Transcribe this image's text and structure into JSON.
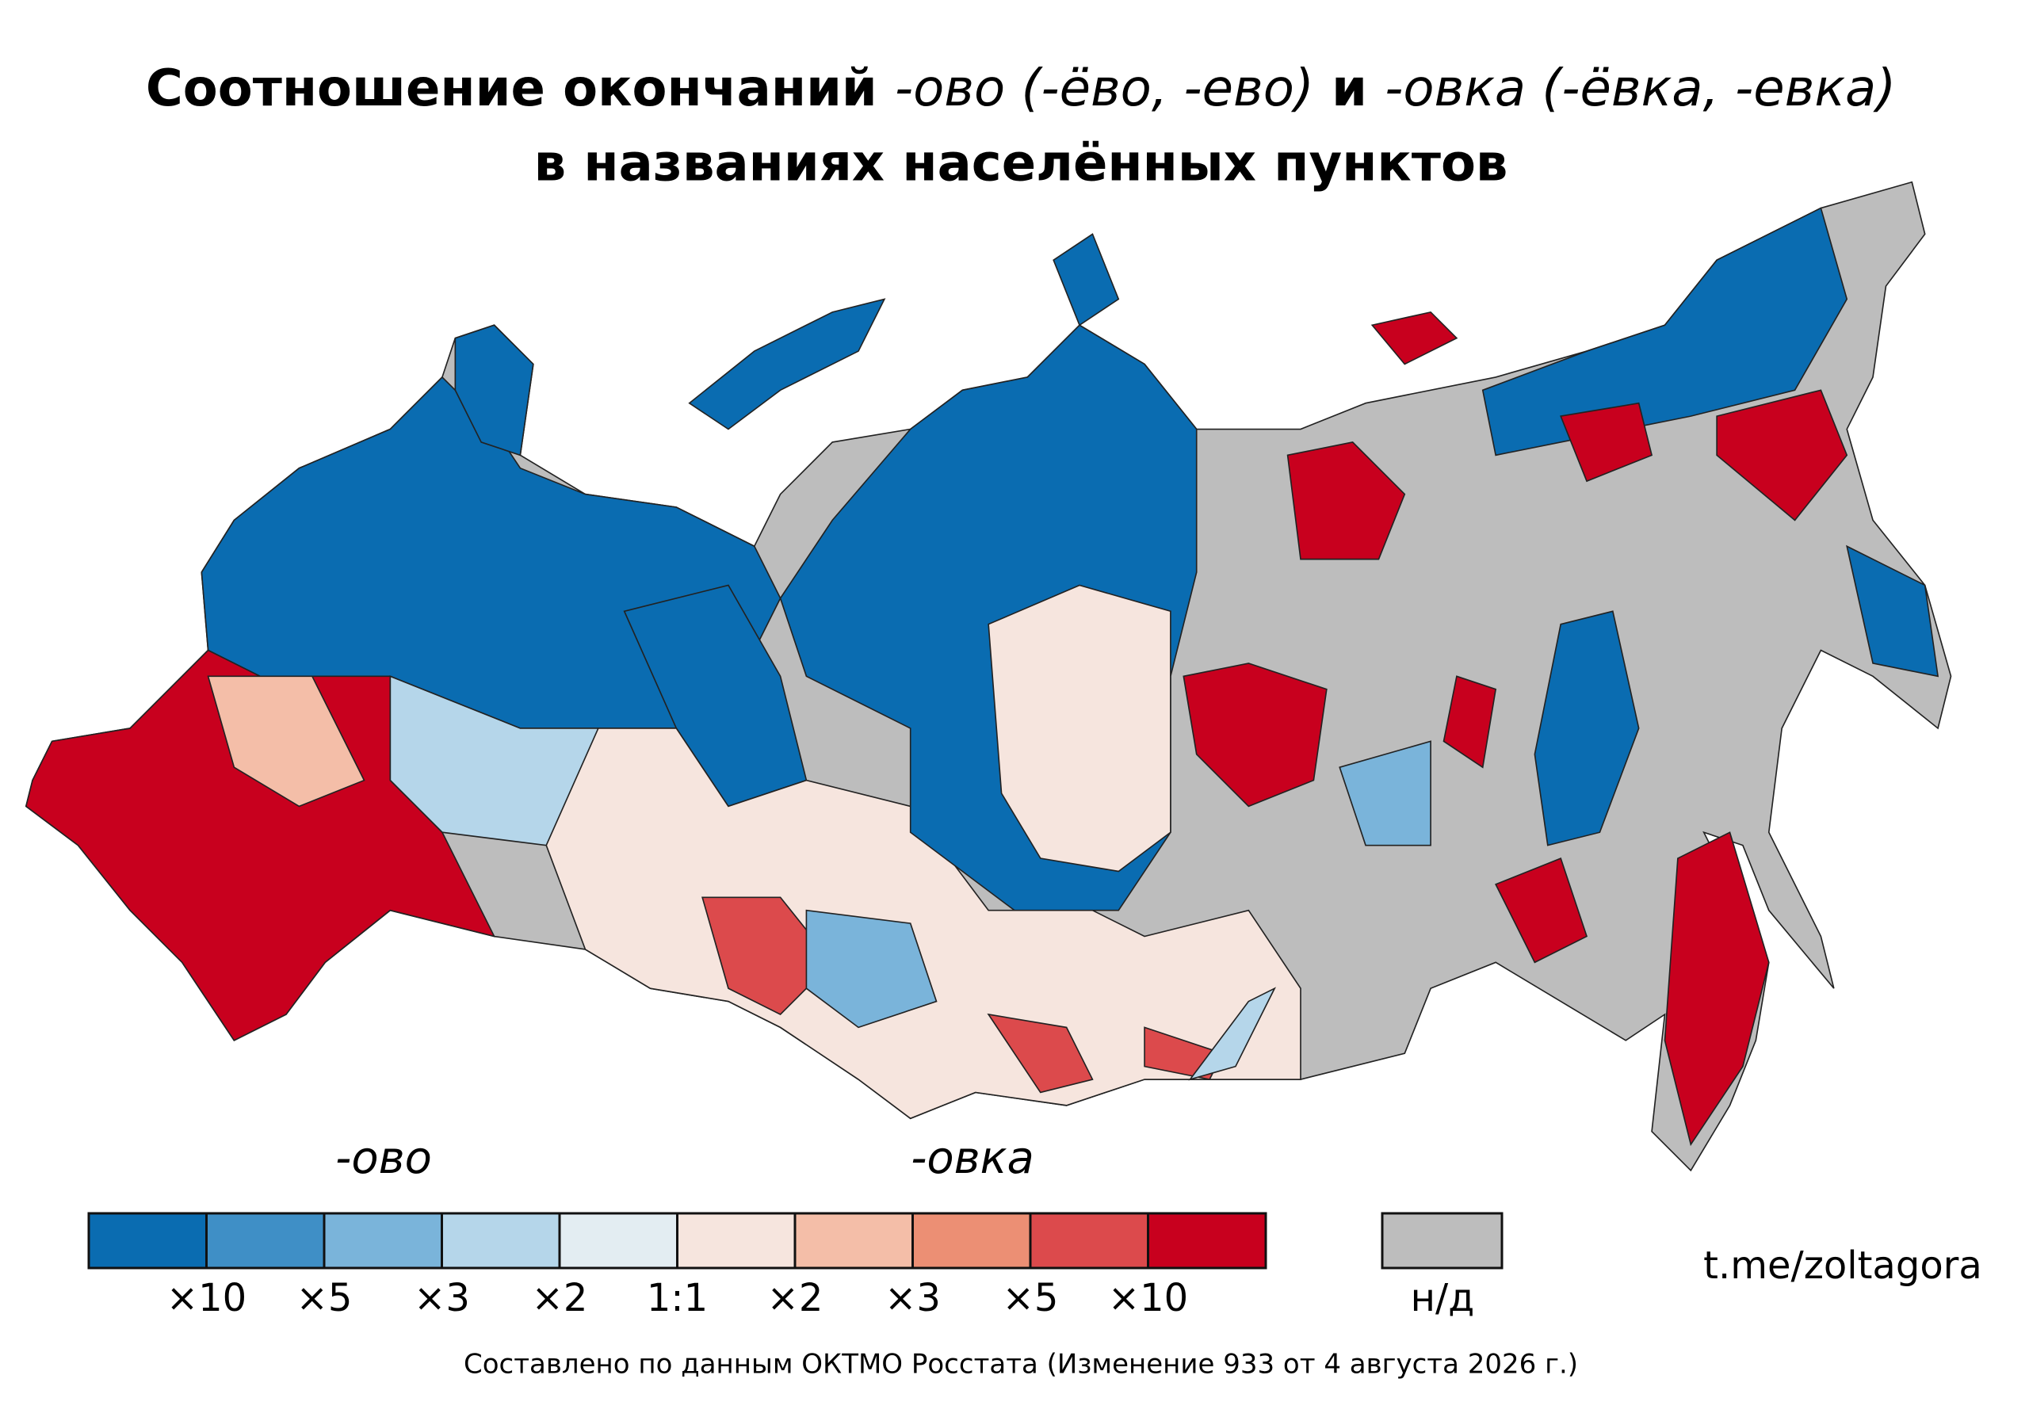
{
  "title": {
    "line1": [
      "Соотношение окончаний ",
      "-ово (-ёво, -ево)",
      " и ",
      "-овка (-ёвка, -евка)"
    ],
    "line2": "в названиях населённых пунктов"
  },
  "legend": {
    "left_label": "-ово",
    "right_label": "-овка",
    "colors": [
      "#0a6cb1",
      "#3f8fc6",
      "#7ab4da",
      "#b5d6ea",
      "#e3edf2",
      "#f6e5de",
      "#f4bea8",
      "#ec8f74",
      "#dc4a4c",
      "#c8001e"
    ],
    "labels": [
      "×10",
      "×5",
      "×3",
      "×2",
      "1:1",
      "×2",
      "×3",
      "×5",
      "×10"
    ],
    "no_data": {
      "label": "н/д",
      "color": "#bdbdbd"
    }
  },
  "credit": "t.me/zoltagora",
  "source": "Составлено по данным ОКТМО Росстата (Изменение 933 от 4 августа 2026 г.)"
}
